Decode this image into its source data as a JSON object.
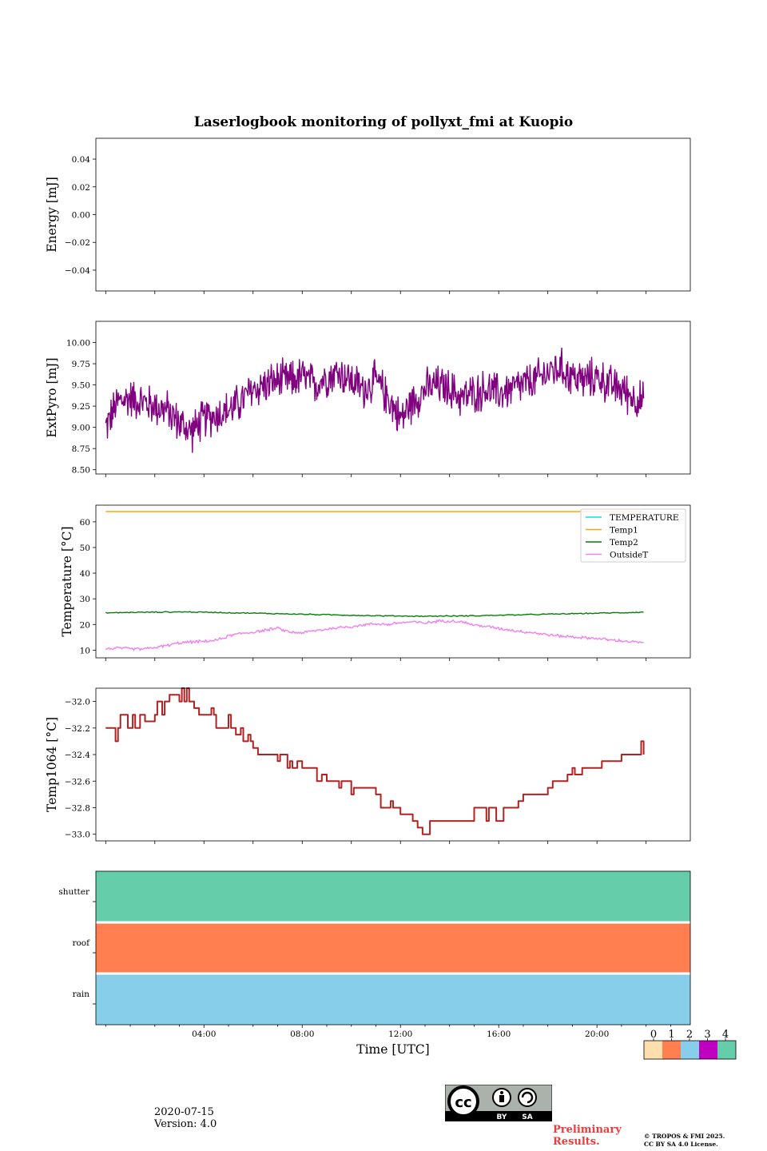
{
  "title": "Laserlogbook monitoring of pollyxt_fmi at Kuopio",
  "date": "2020-07-15",
  "version": "Version: 4.0",
  "preliminary": [
    "Preliminary",
    "Results."
  ],
  "copyright": [
    "© TROPOS & FMI 2025.",
    "CC BY SA 4.0 License."
  ],
  "license_badge": {
    "cc": "cc",
    "by": "BY",
    "sa": "SA"
  },
  "colors": {
    "extpyro": "#800080",
    "temperature": "#00e5ee",
    "temp1": "#ffa500",
    "temp2": "#008000",
    "outsideT": "#ee82ee",
    "temp1064": "#b22222",
    "flag_0": "#ffdead",
    "flag_1": "#ff7f50",
    "flag_2": "#87ceeb",
    "flag_3": "#c000c0",
    "flag_4": "#66cdaa"
  },
  "chart_data": [
    {
      "id": "energy",
      "type": "line",
      "ylabel": "Energy [mJ]",
      "ylim": [
        -0.055,
        0.055
      ],
      "yticks": [
        0.04,
        0.02,
        0.0,
        -0.02,
        -0.04
      ],
      "ytick_labels": [
        "0.04",
        "0.02",
        "0.00",
        "−0.02",
        "−0.04"
      ],
      "series": []
    },
    {
      "id": "extpyro",
      "type": "line",
      "ylabel": "ExtPyro [mJ]",
      "ylim": [
        8.45,
        10.25
      ],
      "yticks": [
        10.0,
        9.75,
        9.5,
        9.25,
        9.0,
        8.75,
        8.5
      ],
      "ytick_labels": [
        "10.00",
        "9.75",
        "9.50",
        "9.25",
        "9.00",
        "8.75",
        "8.50"
      ],
      "series": [
        {
          "name": "ExtPyro",
          "color": "extpyro",
          "x": [
            0.0,
            0.5,
            1.0,
            1.5,
            2.0,
            2.5,
            3.0,
            3.5,
            4.0,
            4.5,
            5.0,
            5.5,
            6.0,
            6.5,
            7.0,
            7.5,
            8.0,
            8.5,
            9.0,
            9.5,
            10.0,
            10.5,
            11.0,
            11.5,
            12.0,
            12.5,
            13.0,
            13.5,
            14.0,
            14.5,
            15.0,
            15.5,
            16.0,
            16.5,
            17.0,
            17.5,
            18.0,
            18.5,
            19.0,
            19.5,
            20.0,
            20.5,
            21.0,
            21.5,
            21.9
          ],
          "y": [
            9.0,
            9.3,
            9.35,
            9.3,
            9.25,
            9.2,
            9.05,
            8.95,
            9.1,
            9.15,
            9.2,
            9.3,
            9.45,
            9.5,
            9.55,
            9.55,
            9.6,
            9.5,
            9.6,
            9.65,
            9.55,
            9.45,
            9.55,
            9.35,
            9.1,
            9.3,
            9.45,
            9.5,
            9.45,
            9.35,
            9.4,
            9.45,
            9.4,
            9.45,
            9.5,
            9.55,
            9.65,
            9.7,
            9.6,
            9.55,
            9.6,
            9.5,
            9.45,
            9.35,
            9.3
          ],
          "noise": 0.28,
          "noise_points": 900
        }
      ]
    },
    {
      "id": "temperature",
      "type": "line",
      "ylabel": "Temperature [°C]",
      "ylim": [
        7,
        66.5
      ],
      "yticks": [
        60,
        50,
        40,
        30,
        20,
        10
      ],
      "ytick_labels": [
        "60",
        "50",
        "40",
        "30",
        "20",
        "10"
      ],
      "legend": {
        "placement": "upper-right",
        "entries": [
          "TEMPERATURE",
          "Temp1",
          "Temp2",
          "OutsideT"
        ]
      },
      "series": [
        {
          "name": "TEMPERATURE",
          "color": "temperature",
          "x": [],
          "y": []
        },
        {
          "name": "Temp1",
          "color": "temp1",
          "x": [
            0,
            21.9
          ],
          "y": [
            64,
            64
          ]
        },
        {
          "name": "Temp2",
          "color": "temp2",
          "x": [
            0,
            1,
            2,
            3,
            4,
            5,
            6,
            7,
            8,
            9,
            10,
            11,
            12,
            13,
            14,
            15,
            16,
            17,
            18,
            19,
            20,
            21,
            21.9
          ],
          "y": [
            24.5,
            24.7,
            24.8,
            24.9,
            24.8,
            24.6,
            24.4,
            24.2,
            24.0,
            23.8,
            23.6,
            23.4,
            23.3,
            23.2,
            23.3,
            23.4,
            23.6,
            23.8,
            24.0,
            24.2,
            24.4,
            24.6,
            24.8
          ],
          "noise": 0.25,
          "noise_points": 300
        },
        {
          "name": "OutsideT",
          "color": "outsideT",
          "x": [
            0,
            0.5,
            1,
            1.5,
            2,
            2.5,
            3,
            3.5,
            4,
            4.5,
            5,
            5.5,
            6,
            6.5,
            7,
            7.5,
            8,
            8.5,
            9,
            9.5,
            10,
            10.5,
            11,
            11.5,
            12,
            12.5,
            13,
            13.5,
            14,
            14.5,
            15,
            15.5,
            16,
            16.5,
            17,
            17.5,
            18,
            18.5,
            19,
            19.5,
            20,
            20.5,
            21,
            21.5,
            21.9
          ],
          "y": [
            10.5,
            10.8,
            10.5,
            10.4,
            11.0,
            11.8,
            12.8,
            13.2,
            13.4,
            13.8,
            15.5,
            16.5,
            17.0,
            17.8,
            18.5,
            17.0,
            16.8,
            17.5,
            18.2,
            18.8,
            19.2,
            19.8,
            20.3,
            20.0,
            20.7,
            21.0,
            20.5,
            21.3,
            21.5,
            21.0,
            19.8,
            19.2,
            18.5,
            17.8,
            17.2,
            16.7,
            16.0,
            15.5,
            15.2,
            14.8,
            14.6,
            14.0,
            13.6,
            13.2,
            12.8
          ],
          "noise": 0.7,
          "noise_points": 500
        }
      ]
    },
    {
      "id": "temp1064",
      "type": "line",
      "ylabel": "Temp1064 [°C]",
      "ylim": [
        -33.05,
        -31.9
      ],
      "yticks": [
        -32.0,
        -32.2,
        -32.4,
        -32.6,
        -32.8,
        -33.0
      ],
      "ytick_labels": [
        "−32.0",
        "−32.2",
        "−32.4",
        "−32.6",
        "−32.8",
        "−33.0"
      ],
      "series": [
        {
          "name": "Temp1064",
          "color": "temp1064",
          "step": true,
          "x": [
            0,
            0.4,
            0.5,
            0.6,
            0.9,
            1.1,
            1.2,
            1.4,
            1.6,
            2.0,
            2.1,
            2.3,
            2.4,
            2.6,
            3.0,
            3.1,
            3.2,
            3.3,
            3.4,
            3.6,
            3.8,
            4.1,
            4.3,
            4.4,
            4.5,
            5.0,
            5.1,
            5.3,
            5.5,
            5.6,
            5.8,
            5.9,
            6.0,
            6.2,
            7.0,
            7.1,
            7.4,
            7.5,
            7.6,
            7.8,
            8.0,
            8.1,
            8.6,
            8.8,
            9.0,
            9.5,
            9.6,
            10.0,
            10.1,
            11.0,
            11.2,
            11.6,
            11.7,
            12.0,
            12.5,
            12.7,
            12.9,
            13.2,
            14.0,
            14.5,
            14.7,
            15.0,
            15.5,
            15.6,
            15.9,
            16.2,
            16.5,
            16.8,
            17.0,
            18.0,
            18.2,
            18.5,
            18.8,
            19.0,
            19.1,
            19.4,
            19.6,
            20.2,
            21.0,
            21.5,
            21.8,
            21.9
          ],
          "y": [
            -32.2,
            -32.3,
            -32.2,
            -32.1,
            -32.2,
            -32.1,
            -32.2,
            -32.1,
            -32.15,
            -32.1,
            -32.0,
            -32.1,
            -32.0,
            -31.95,
            -32.0,
            -31.9,
            -32.0,
            -31.9,
            -32.0,
            -32.05,
            -32.1,
            -32.1,
            -32.05,
            -32.1,
            -32.2,
            -32.1,
            -32.2,
            -32.25,
            -32.2,
            -32.3,
            -32.25,
            -32.3,
            -32.35,
            -32.4,
            -32.45,
            -32.4,
            -32.5,
            -32.45,
            -32.5,
            -32.45,
            -32.5,
            -32.5,
            -32.6,
            -32.55,
            -32.6,
            -32.65,
            -32.6,
            -32.7,
            -32.65,
            -32.7,
            -32.8,
            -32.75,
            -32.8,
            -32.85,
            -32.9,
            -32.95,
            -33.0,
            -32.9,
            -32.9,
            -32.9,
            -32.9,
            -32.8,
            -32.9,
            -32.8,
            -32.9,
            -32.8,
            -32.8,
            -32.75,
            -32.7,
            -32.65,
            -32.6,
            -32.6,
            -32.55,
            -32.5,
            -32.55,
            -32.5,
            -32.5,
            -32.45,
            -32.4,
            -32.4,
            -32.3,
            -32.4
          ]
        }
      ]
    },
    {
      "id": "flags",
      "type": "heatmap",
      "xlabel": "Time [UTC]",
      "rows": [
        "shutter",
        "roof",
        "rain"
      ],
      "row_values": [
        4,
        1,
        2
      ],
      "xticks": [
        4,
        8,
        12,
        16,
        20
      ],
      "xtick_labels": [
        "04:00",
        "08:00",
        "12:00",
        "16:00",
        "20:00"
      ],
      "colorbar": {
        "ticks": [
          "0",
          "1",
          "2",
          "3",
          "4"
        ],
        "colors": [
          "flag_0",
          "flag_1",
          "flag_2",
          "flag_3",
          "flag_4"
        ]
      }
    }
  ]
}
